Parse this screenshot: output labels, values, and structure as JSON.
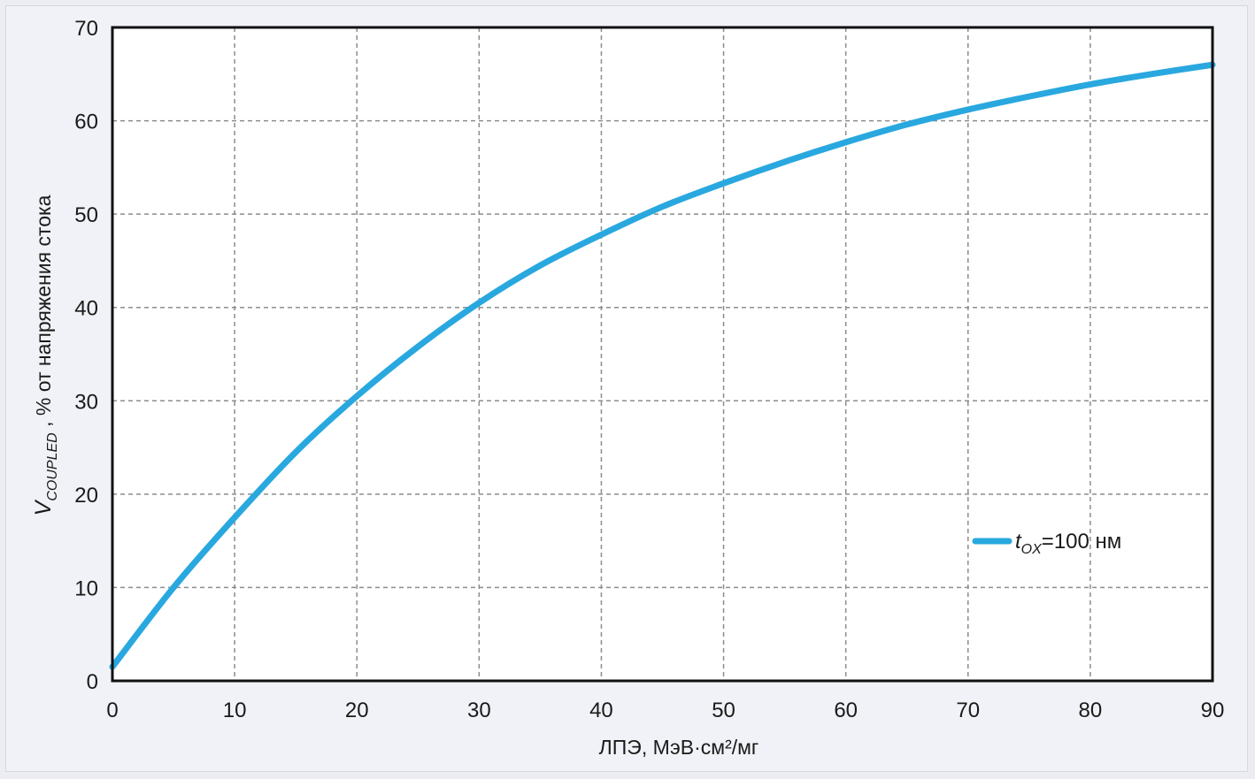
{
  "chart_data": {
    "type": "line",
    "xlabel": "ЛПЭ, МэВ·см²/мг",
    "ylabel": {
      "main": "V",
      "subscript": "COUPLED",
      "rest": " , % от напряжения стока"
    },
    "xlim": [
      0,
      90
    ],
    "ylim": [
      0,
      70
    ],
    "xticks": [
      0,
      10,
      20,
      30,
      40,
      50,
      60,
      70,
      80,
      90
    ],
    "yticks": [
      0,
      10,
      20,
      30,
      40,
      50,
      60,
      70
    ],
    "x_tick_labels": [
      "0",
      "10",
      "20",
      "30",
      "40",
      "50",
      "60",
      "70",
      "80",
      "90"
    ],
    "y_tick_labels": [
      "0",
      "10",
      "20",
      "30",
      "40",
      "50",
      "60",
      "70"
    ],
    "grid": true,
    "legend_position": "right",
    "series": [
      {
        "legend": {
          "main": "t",
          "subscript": "OX",
          "rest": "=100 нм"
        },
        "color": "#29a8df",
        "x": [
          0,
          5,
          10,
          15,
          20,
          25,
          30,
          35,
          40,
          45,
          50,
          55,
          60,
          65,
          70,
          75,
          80,
          85,
          90
        ],
        "y": [
          1.5,
          10,
          17.5,
          24.5,
          30.5,
          35.8,
          40.5,
          44.5,
          47.8,
          50.8,
          53.3,
          55.6,
          57.7,
          59.6,
          61.2,
          62.6,
          63.9,
          65.0,
          66.0
        ]
      }
    ]
  }
}
